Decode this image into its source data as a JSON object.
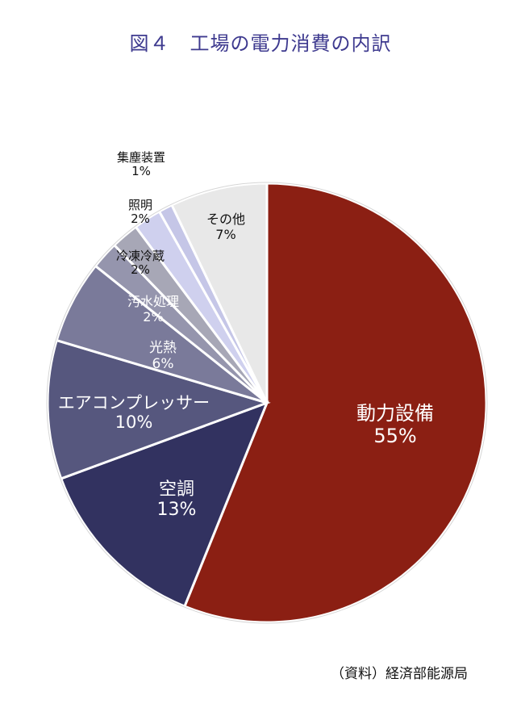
{
  "title": "図４　工場の電力消費の内訳",
  "source": "（資料）経済部能源局",
  "chart_data": {
    "type": "pie",
    "title": "図４　工場の電力消費の内訳",
    "slices": [
      {
        "label": "動力設備",
        "value": 55,
        "value_label": "55%",
        "color": "#8b1f13"
      },
      {
        "label": "空調",
        "value": 13,
        "value_label": "13%",
        "color": "#323260"
      },
      {
        "label": "エアコンプレッサー",
        "value": 10,
        "value_label": "10%",
        "color": "#56577e"
      },
      {
        "label": "光熱",
        "value": 6,
        "value_label": "6%",
        "color": "#7a7a9a"
      },
      {
        "label": "汚水処理",
        "value": 2,
        "value_label": "2%",
        "color": "#9595ad"
      },
      {
        "label": "冷凍冷蔵",
        "value": 2,
        "value_label": "2%",
        "color": "#a7a7b6"
      },
      {
        "label": "照明",
        "value": 2,
        "value_label": "2%",
        "color": "#cfd0ee"
      },
      {
        "label": "集塵装置",
        "value": 1,
        "value_label": "1%",
        "color": "#c5c6e7"
      },
      {
        "label": "その他",
        "value": 7,
        "value_label": "7%",
        "color": "#e8e8e8"
      }
    ]
  }
}
